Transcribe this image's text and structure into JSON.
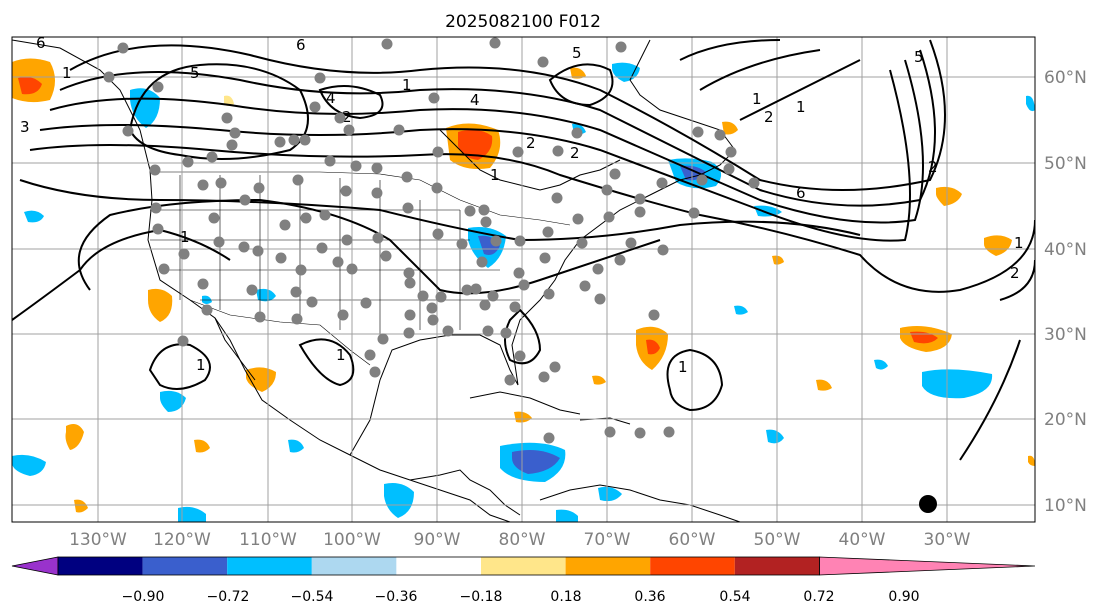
{
  "title": "2025082100 F012",
  "lat_labels": [
    "60°N",
    "50°N",
    "40°N",
    "30°N",
    "20°N",
    "10°N"
  ],
  "lon_labels": [
    "130°W",
    "120°W",
    "110°W",
    "100°W",
    "90°W",
    "80°W",
    "70°W",
    "60°W",
    "50°W",
    "40°W",
    "30°W"
  ],
  "colorbar": {
    "tick_labels": [
      "−0.90",
      "−0.72",
      "−0.54",
      "−0.36",
      "−0.18",
      "0.18",
      "0.36",
      "0.54",
      "0.72",
      "0.90"
    ],
    "colors": [
      "#9932cc",
      "#000080",
      "#3a5fcd",
      "#00bfff",
      "#add8f0",
      "#ffffff",
      "#ffe68a",
      "#ffa500",
      "#ff4500",
      "#b22222",
      "#ff83b4"
    ]
  },
  "shading_colors": {
    "light_blue": "#add8f0",
    "blue": "#00bfff",
    "mid_blue": "#3a5fcd",
    "yellow": "#ffe68a",
    "orange": "#ffa500",
    "red_orange": "#ff4500"
  },
  "contour_labels": [
    "6",
    "5",
    "3",
    "4",
    "2",
    "6",
    "4",
    "2",
    "1",
    "1",
    "2",
    "5",
    "6",
    "1",
    "2",
    "5",
    "1",
    "1",
    "2",
    "1",
    "1",
    "1",
    "1",
    "1",
    "2"
  ],
  "marker_color": "#808080"
}
